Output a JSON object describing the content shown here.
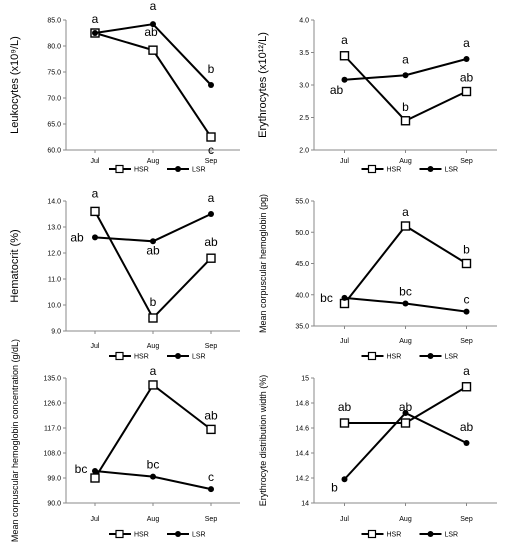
{
  "chart_data": [
    {
      "type": "line",
      "ylabel": "Leukocytes (x10⁹/L)",
      "categories": [
        "Jul",
        "Aug",
        "Sep"
      ],
      "ylim": [
        60.0,
        85.0
      ],
      "yticks": [
        "60.0",
        "65.0",
        "70.0",
        "75.0",
        "80.0",
        "85.0"
      ],
      "grid": false,
      "legend_position": "bottom",
      "series": [
        {
          "name": "HSR",
          "marker": "open-square",
          "values": [
            82.5,
            79.2,
            62.5
          ],
          "labels": [
            "",
            "ab",
            "c"
          ]
        },
        {
          "name": "LSR",
          "marker": "filled-circle",
          "values": [
            82.5,
            84.2,
            72.5
          ],
          "labels": [
            "a",
            "a",
            "b"
          ]
        }
      ]
    },
    {
      "type": "line",
      "ylabel": "Erythrocytes (x10¹²/L)",
      "categories": [
        "Jul",
        "Aug",
        "Sep"
      ],
      "ylim": [
        2.0,
        4.0
      ],
      "yticks": [
        "2.0",
        "2.5",
        "3.0",
        "3.5",
        "4.0"
      ],
      "grid": false,
      "legend_position": "bottom",
      "series": [
        {
          "name": "HSR",
          "marker": "open-square",
          "values": [
            3.45,
            2.45,
            2.9
          ],
          "labels": [
            "a",
            "b",
            "ab"
          ]
        },
        {
          "name": "LSR",
          "marker": "filled-circle",
          "values": [
            3.08,
            3.15,
            3.4
          ],
          "labels": [
            "ab",
            "a",
            "a"
          ]
        }
      ]
    },
    {
      "type": "line",
      "ylabel": "Hematocrit (%)",
      "categories": [
        "Jul",
        "Aug",
        "Sep"
      ],
      "ylim": [
        9.0,
        14.0
      ],
      "yticks": [
        "9.0",
        "10.0",
        "11.0",
        "12.0",
        "13.0",
        "14.0"
      ],
      "grid": false,
      "legend_position": "bottom",
      "series": [
        {
          "name": "HSR",
          "marker": "open-square",
          "values": [
            13.6,
            9.5,
            11.8
          ],
          "labels": [
            "a",
            "b",
            "ab"
          ]
        },
        {
          "name": "LSR",
          "marker": "filled-circle",
          "values": [
            12.6,
            12.45,
            13.5
          ],
          "labels": [
            "ab",
            "ab",
            "a"
          ]
        }
      ]
    },
    {
      "type": "line",
      "ylabel": "Mean corpuscular hemoglobin (pg)",
      "categories": [
        "Jul",
        "Aug",
        "Sep"
      ],
      "ylim": [
        35.0,
        55.0
      ],
      "yticks": [
        "35.0",
        "40.0",
        "45.0",
        "50.0",
        "55.0"
      ],
      "grid": false,
      "legend_position": "bottom",
      "series": [
        {
          "name": "HSR",
          "marker": "open-square",
          "values": [
            38.6,
            51.0,
            45.0
          ],
          "labels": [
            "",
            "a",
            "b"
          ]
        },
        {
          "name": "LSR",
          "marker": "filled-circle",
          "values": [
            39.5,
            38.6,
            37.3
          ],
          "labels": [
            "bc",
            "bc",
            "c"
          ]
        }
      ]
    },
    {
      "type": "line",
      "ylabel": "Mean corpuscular hemoglobin concentration (g/dL)",
      "categories": [
        "Jul",
        "Aug",
        "Sep"
      ],
      "ylim": [
        90.0,
        135.0
      ],
      "yticks": [
        "90.0",
        "99.0",
        "108.0",
        "117.0",
        "126.0",
        "135.0"
      ],
      "grid": false,
      "legend_position": "bottom",
      "series": [
        {
          "name": "HSR",
          "marker": "open-square",
          "values": [
            99.0,
            132.5,
            116.5
          ],
          "labels": [
            "",
            "a",
            "ab"
          ]
        },
        {
          "name": "LSR",
          "marker": "filled-circle",
          "values": [
            101.5,
            99.5,
            95.0
          ],
          "labels": [
            "bc",
            "bc",
            "c"
          ]
        }
      ]
    },
    {
      "type": "line",
      "ylabel": "Erythrocyte distribution width (%)",
      "categories": [
        "Jul",
        "Aug",
        "Sep"
      ],
      "ylim": [
        14.0,
        15.0
      ],
      "yticks": [
        "14",
        "14.2",
        "14.4",
        "14.6",
        "14.8",
        "15"
      ],
      "grid": false,
      "legend_position": "bottom",
      "series": [
        {
          "name": "HSR",
          "marker": "open-square",
          "values": [
            14.64,
            14.64,
            14.93
          ],
          "labels": [
            "ab",
            "ab",
            "a"
          ]
        },
        {
          "name": "LSR",
          "marker": "filled-circle",
          "values": [
            14.19,
            14.72,
            14.48
          ],
          "labels": [
            "b",
            "",
            "ab"
          ]
        }
      ]
    }
  ]
}
